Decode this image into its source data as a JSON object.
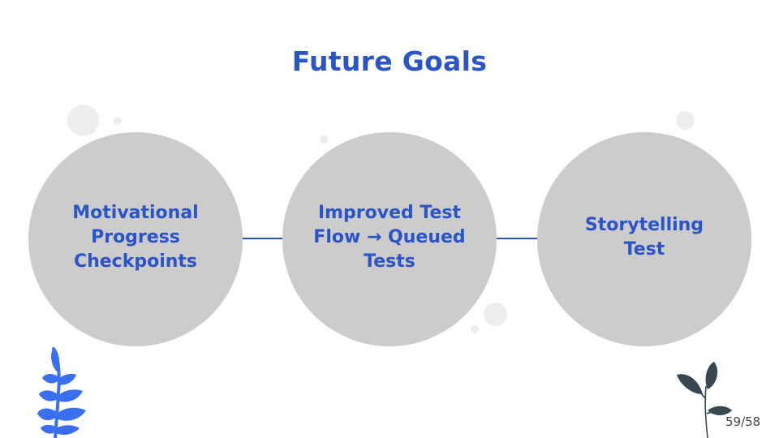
{
  "slide": {
    "title": "Future Goals",
    "page_number": "59/58"
  },
  "goals": [
    {
      "label": "Motivational Progress Checkpoints"
    },
    {
      "label": "Improved Test Flow → Queued Tests"
    },
    {
      "label": "Storytelling Test"
    }
  ],
  "colors": {
    "accent": "#2b55c6",
    "circle_fill": "#cccccc",
    "decor_dot": "#ededed",
    "fern": "#3a6ff0",
    "plant_leaf": "#37474f"
  },
  "decorations": [
    "blue-fern-icon",
    "dark-plant-icon"
  ]
}
